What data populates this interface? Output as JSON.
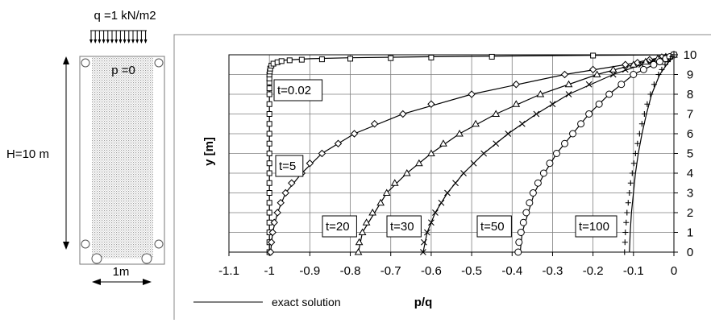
{
  "left_panel": {
    "load_label": "q =1 kN/m2",
    "pressure_label": "p =0",
    "height_label": "H=10 m",
    "width_label": "1m"
  },
  "legend": {
    "line_label": "exact solution"
  },
  "chart_data": {
    "type": "line",
    "xlabel": "p/q",
    "ylabel": "y [m]",
    "xlim": [
      -1.1,
      0
    ],
    "ylim": [
      0,
      10
    ],
    "x_ticks": [
      "-1.1",
      "-1",
      "-0.9",
      "-0.8",
      "-0.7",
      "-0.6",
      "-0.5",
      "-0.4",
      "-0.3",
      "-0.2",
      "-0.1",
      "0"
    ],
    "y_ticks": [
      "0",
      "1",
      "2",
      "3",
      "4",
      "5",
      "6",
      "7",
      "8",
      "9",
      "10"
    ],
    "grid": true,
    "series": [
      {
        "name": "t=0.02",
        "marker": "square",
        "exact": [
          [
            -1.0,
            0
          ],
          [
            -1.0,
            8.9
          ],
          [
            -0.998,
            9.25
          ],
          [
            -0.99,
            9.55
          ],
          [
            -0.97,
            9.72
          ],
          [
            -0.9,
            9.8
          ],
          [
            -0.8,
            9.85
          ],
          [
            -0.6,
            9.9
          ],
          [
            -0.4,
            9.94
          ],
          [
            -0.2,
            9.97
          ],
          [
            0,
            10
          ]
        ],
        "points": [
          [
            -1.0,
            0
          ],
          [
            -1.0,
            0.5
          ],
          [
            -1.0,
            1.0
          ],
          [
            -1.0,
            1.5
          ],
          [
            -1.0,
            2.0
          ],
          [
            -1.0,
            2.5
          ],
          [
            -1.0,
            3.0
          ],
          [
            -1.0,
            3.5
          ],
          [
            -1.0,
            4.0
          ],
          [
            -1.0,
            4.5
          ],
          [
            -1.0,
            5.0
          ],
          [
            -1.0,
            5.5
          ],
          [
            -1.0,
            6.0
          ],
          [
            -1.0,
            6.5
          ],
          [
            -1.0,
            7.0
          ],
          [
            -1.0,
            7.5
          ],
          [
            -1.0,
            8.0
          ],
          [
            -1.0,
            8.3
          ],
          [
            -1.0,
            8.6
          ],
          [
            -1.0,
            8.8
          ],
          [
            -1.0,
            9.0
          ],
          [
            -0.999,
            9.15
          ],
          [
            -0.998,
            9.3
          ],
          [
            -0.995,
            9.45
          ],
          [
            -0.99,
            9.55
          ],
          [
            -0.98,
            9.62
          ],
          [
            -0.97,
            9.68
          ],
          [
            -0.95,
            9.72
          ],
          [
            -0.92,
            9.75
          ],
          [
            -0.87,
            9.77
          ],
          [
            -0.8,
            9.8
          ],
          [
            -0.7,
            9.83
          ],
          [
            -0.6,
            9.86
          ],
          [
            -0.45,
            9.9
          ],
          [
            -0.2,
            9.96
          ],
          [
            0,
            10
          ]
        ]
      },
      {
        "name": "t=5",
        "marker": "diamond",
        "exact": [
          [
            -0.997,
            0
          ],
          [
            -0.992,
            1
          ],
          [
            -0.98,
            2
          ],
          [
            -0.96,
            3
          ],
          [
            -0.92,
            4
          ],
          [
            -0.87,
            5
          ],
          [
            -0.79,
            6
          ],
          [
            -0.67,
            7
          ],
          [
            -0.5,
            8
          ],
          [
            -0.27,
            9
          ],
          [
            -0.12,
            9.5
          ],
          [
            0,
            10
          ]
        ],
        "points": [
          [
            -0.997,
            0
          ],
          [
            -0.995,
            0.5
          ],
          [
            -0.992,
            1
          ],
          [
            -0.988,
            1.5
          ],
          [
            -0.98,
            2
          ],
          [
            -0.972,
            2.5
          ],
          [
            -0.96,
            3
          ],
          [
            -0.945,
            3.5
          ],
          [
            -0.92,
            4
          ],
          [
            -0.9,
            4.5
          ],
          [
            -0.87,
            5
          ],
          [
            -0.83,
            5.5
          ],
          [
            -0.79,
            6
          ],
          [
            -0.74,
            6.5
          ],
          [
            -0.67,
            7
          ],
          [
            -0.6,
            7.5
          ],
          [
            -0.5,
            8
          ],
          [
            -0.39,
            8.5
          ],
          [
            -0.27,
            9
          ],
          [
            -0.2,
            9.25
          ],
          [
            -0.12,
            9.5
          ],
          [
            -0.09,
            9.6
          ],
          [
            -0.06,
            9.75
          ],
          [
            -0.03,
            9.88
          ],
          [
            0,
            10
          ]
        ]
      },
      {
        "name": "t=20",
        "marker": "triangle",
        "exact": [
          [
            -0.78,
            0
          ],
          [
            -0.77,
            1
          ],
          [
            -0.74,
            2
          ],
          [
            -0.71,
            3
          ],
          [
            -0.66,
            4
          ],
          [
            -0.6,
            5
          ],
          [
            -0.53,
            6
          ],
          [
            -0.44,
            7
          ],
          [
            -0.33,
            8
          ],
          [
            -0.19,
            9
          ],
          [
            -0.1,
            9.5
          ],
          [
            0,
            10
          ]
        ],
        "points": [
          [
            -0.78,
            0
          ],
          [
            -0.778,
            0.5
          ],
          [
            -0.77,
            1
          ],
          [
            -0.76,
            1.5
          ],
          [
            -0.745,
            2
          ],
          [
            -0.725,
            2.5
          ],
          [
            -0.71,
            3
          ],
          [
            -0.69,
            3.5
          ],
          [
            -0.66,
            4
          ],
          [
            -0.63,
            4.5
          ],
          [
            -0.6,
            5
          ],
          [
            -0.57,
            5.5
          ],
          [
            -0.53,
            6
          ],
          [
            -0.49,
            6.5
          ],
          [
            -0.44,
            7
          ],
          [
            -0.39,
            7.5
          ],
          [
            -0.33,
            8
          ],
          [
            -0.26,
            8.5
          ],
          [
            -0.19,
            9
          ],
          [
            -0.15,
            9.25
          ],
          [
            -0.1,
            9.5
          ],
          [
            -0.07,
            9.65
          ],
          [
            -0.04,
            9.8
          ],
          [
            -0.02,
            9.9
          ],
          [
            0,
            10
          ]
        ]
      },
      {
        "name": "t=30",
        "marker": "x",
        "exact": [
          [
            -0.62,
            0
          ],
          [
            -0.61,
            1
          ],
          [
            -0.59,
            2
          ],
          [
            -0.56,
            3
          ],
          [
            -0.52,
            4
          ],
          [
            -0.47,
            5
          ],
          [
            -0.41,
            6
          ],
          [
            -0.34,
            7
          ],
          [
            -0.26,
            8
          ],
          [
            -0.15,
            9
          ],
          [
            -0.08,
            9.5
          ],
          [
            0,
            10
          ]
        ],
        "points": [
          [
            -0.62,
            0
          ],
          [
            -0.618,
            0.5
          ],
          [
            -0.61,
            1
          ],
          [
            -0.6,
            1.5
          ],
          [
            -0.59,
            2
          ],
          [
            -0.575,
            2.5
          ],
          [
            -0.56,
            3
          ],
          [
            -0.54,
            3.5
          ],
          [
            -0.52,
            4
          ],
          [
            -0.495,
            4.5
          ],
          [
            -0.47,
            5
          ],
          [
            -0.44,
            5.5
          ],
          [
            -0.41,
            6
          ],
          [
            -0.375,
            6.5
          ],
          [
            -0.34,
            7
          ],
          [
            -0.3,
            7.5
          ],
          [
            -0.26,
            8
          ],
          [
            -0.21,
            8.5
          ],
          [
            -0.15,
            9
          ],
          [
            -0.12,
            9.25
          ],
          [
            -0.08,
            9.5
          ],
          [
            -0.055,
            9.65
          ],
          [
            -0.03,
            9.8
          ],
          [
            -0.015,
            9.9
          ],
          [
            0,
            10
          ]
        ]
      },
      {
        "name": "t=50",
        "marker": "circle",
        "exact": [
          [
            -0.38,
            0
          ],
          [
            -0.375,
            1
          ],
          [
            -0.36,
            2
          ],
          [
            -0.345,
            3
          ],
          [
            -0.32,
            4
          ],
          [
            -0.29,
            5
          ],
          [
            -0.25,
            6
          ],
          [
            -0.21,
            7
          ],
          [
            -0.16,
            8
          ],
          [
            -0.1,
            9
          ],
          [
            -0.05,
            9.5
          ],
          [
            0,
            10
          ]
        ],
        "points": [
          [
            -0.385,
            0
          ],
          [
            -0.383,
            0.5
          ],
          [
            -0.378,
            1
          ],
          [
            -0.372,
            1.5
          ],
          [
            -0.365,
            2
          ],
          [
            -0.357,
            2.5
          ],
          [
            -0.348,
            3
          ],
          [
            -0.336,
            3.5
          ],
          [
            -0.322,
            4
          ],
          [
            -0.307,
            4.5
          ],
          [
            -0.29,
            5
          ],
          [
            -0.27,
            5.5
          ],
          [
            -0.25,
            6
          ],
          [
            -0.23,
            6.5
          ],
          [
            -0.21,
            7
          ],
          [
            -0.185,
            7.5
          ],
          [
            -0.16,
            8
          ],
          [
            -0.13,
            8.5
          ],
          [
            -0.1,
            9
          ],
          [
            -0.075,
            9.25
          ],
          [
            -0.05,
            9.5
          ],
          [
            -0.035,
            9.65
          ],
          [
            -0.02,
            9.8
          ],
          [
            -0.01,
            9.9
          ],
          [
            0,
            10
          ]
        ]
      },
      {
        "name": "t=100",
        "marker": "plus",
        "exact": [
          [
            -0.11,
            0
          ],
          [
            -0.108,
            1
          ],
          [
            -0.105,
            2
          ],
          [
            -0.1,
            3
          ],
          [
            -0.095,
            4
          ],
          [
            -0.088,
            5
          ],
          [
            -0.079,
            6
          ],
          [
            -0.068,
            7
          ],
          [
            -0.055,
            8
          ],
          [
            -0.035,
            9
          ],
          [
            -0.018,
            9.5
          ],
          [
            0,
            10
          ]
        ],
        "points": [
          [
            -0.122,
            0
          ],
          [
            -0.121,
            0.5
          ],
          [
            -0.12,
            1
          ],
          [
            -0.118,
            1.5
          ],
          [
            -0.116,
            2
          ],
          [
            -0.113,
            2.5
          ],
          [
            -0.11,
            3
          ],
          [
            -0.107,
            3.5
          ],
          [
            -0.103,
            4
          ],
          [
            -0.099,
            4.5
          ],
          [
            -0.095,
            5
          ],
          [
            -0.09,
            5.5
          ],
          [
            -0.085,
            6
          ],
          [
            -0.079,
            6.5
          ],
          [
            -0.073,
            7
          ],
          [
            -0.066,
            7.5
          ],
          [
            -0.058,
            8
          ],
          [
            -0.049,
            8.5
          ],
          [
            -0.038,
            9
          ],
          [
            -0.03,
            9.25
          ],
          [
            -0.022,
            9.5
          ],
          [
            -0.015,
            9.65
          ],
          [
            -0.009,
            9.8
          ],
          [
            -0.004,
            9.9
          ],
          [
            0,
            10
          ]
        ]
      }
    ],
    "colors": {
      "axis": "#000000",
      "grid": "#7f7f7f",
      "line": "#000000",
      "marker": "#000000",
      "frame": "#888888"
    }
  }
}
